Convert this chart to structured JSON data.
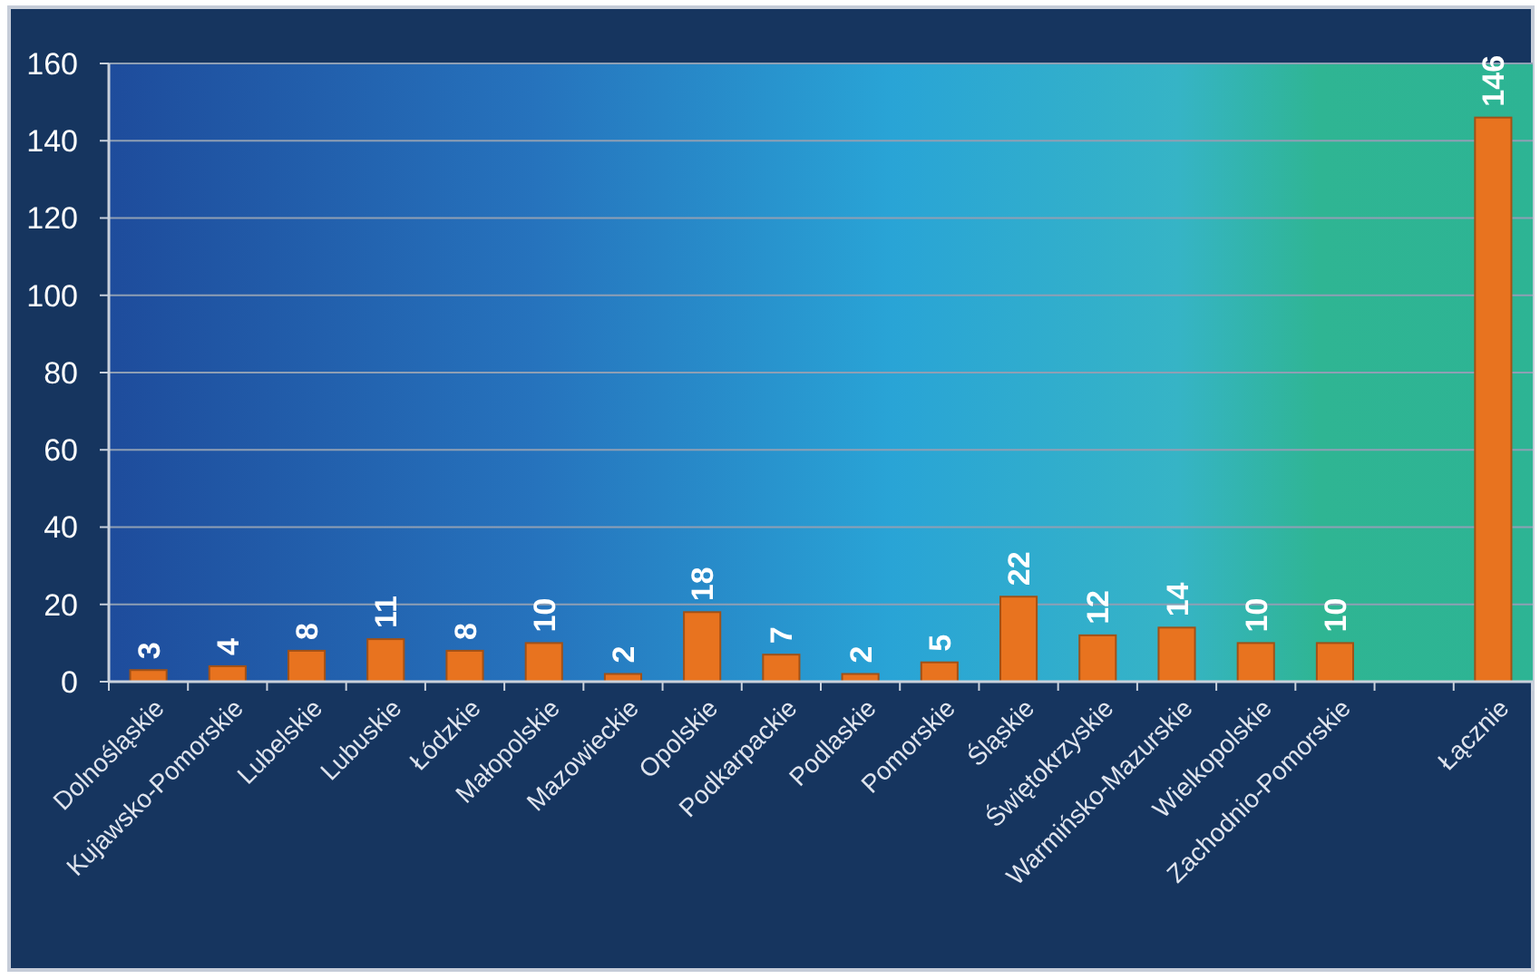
{
  "chart_data": {
    "type": "bar",
    "categories": [
      "Dolnośląskie",
      "Kujawsko-Pomorskie",
      "Lubelskie",
      "Lubuskie",
      "Łódzkie",
      "Małopolskie",
      "Mazowieckie",
      "Opolskie",
      "Podkarpackie",
      "Podlaskie",
      "Pomorskie",
      "Śląskie",
      "Świętokrzyskie",
      "Warmińsko-Mazurskie",
      "Wielkopolskie",
      "Zachodnio-Pomorskie",
      null,
      "Łącznie"
    ],
    "values": [
      3,
      4,
      8,
      11,
      8,
      10,
      2,
      18,
      7,
      2,
      5,
      22,
      12,
      14,
      10,
      10,
      null,
      146
    ],
    "color": "#e8731f",
    "ylim": [
      0,
      160
    ],
    "yticks": [
      0,
      20,
      40,
      60,
      80,
      100,
      120,
      140,
      160
    ],
    "grid": "y",
    "data_labels": true
  }
}
